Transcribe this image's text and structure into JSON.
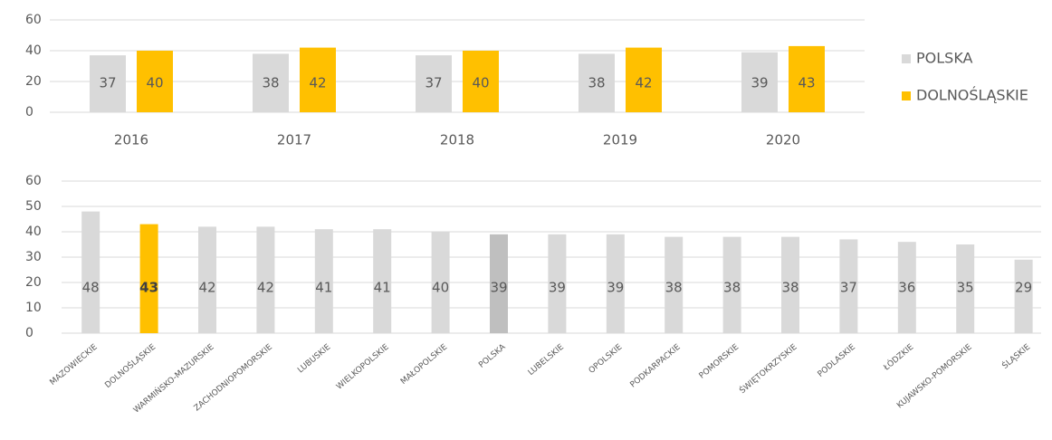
{
  "chart_data": [
    {
      "type": "grouped-bar",
      "categories": [
        "2016",
        "2017",
        "2018",
        "2019",
        "2020"
      ],
      "series": [
        {
          "name": "POLSKA",
          "color": "#d9d9d9",
          "values": [
            37,
            38,
            37,
            38,
            39
          ]
        },
        {
          "name": "DOLNOŚLĄSKIE",
          "color": "#ffc000",
          "values": [
            40,
            42,
            40,
            42,
            43
          ]
        }
      ],
      "ylim": [
        0,
        60
      ],
      "yticks": [
        0,
        20,
        40,
        60
      ],
      "grid": true,
      "legend": "right"
    },
    {
      "type": "bar",
      "categories": [
        "MAZOWIECKIE",
        "DOLNOŚLĄSKIE",
        "WARMIŃSKO-MAZURSKIE",
        "ZACHODNIOPOMORSKIE",
        "LUBUSKIE",
        "WIELKOPOLSKIE",
        "MAŁOPOLSKIE",
        "POLSKA",
        "LUBELSKIE",
        "OPOLSKIE",
        "PODKARPACKIE",
        "POMORSKIE",
        "ŚWIĘTOKRZYSKIE",
        "PODLASKIE",
        "ŁÓDZKIE",
        "KUJAWSKO-POMORSKIE",
        "ŚLĄSKIE"
      ],
      "values": [
        48,
        43,
        42,
        42,
        41,
        41,
        40,
        39,
        39,
        39,
        38,
        38,
        38,
        37,
        36,
        35,
        29
      ],
      "colors": [
        "#d9d9d9",
        "#ffc000",
        "#d9d9d9",
        "#d9d9d9",
        "#d9d9d9",
        "#d9d9d9",
        "#d9d9d9",
        "#bfbfbf",
        "#d9d9d9",
        "#d9d9d9",
        "#d9d9d9",
        "#d9d9d9",
        "#d9d9d9",
        "#d9d9d9",
        "#d9d9d9",
        "#d9d9d9",
        "#d9d9d9"
      ],
      "ylim": [
        0,
        60
      ],
      "yticks": [
        0,
        10,
        20,
        30,
        40,
        50,
        60
      ],
      "grid": true
    }
  ]
}
